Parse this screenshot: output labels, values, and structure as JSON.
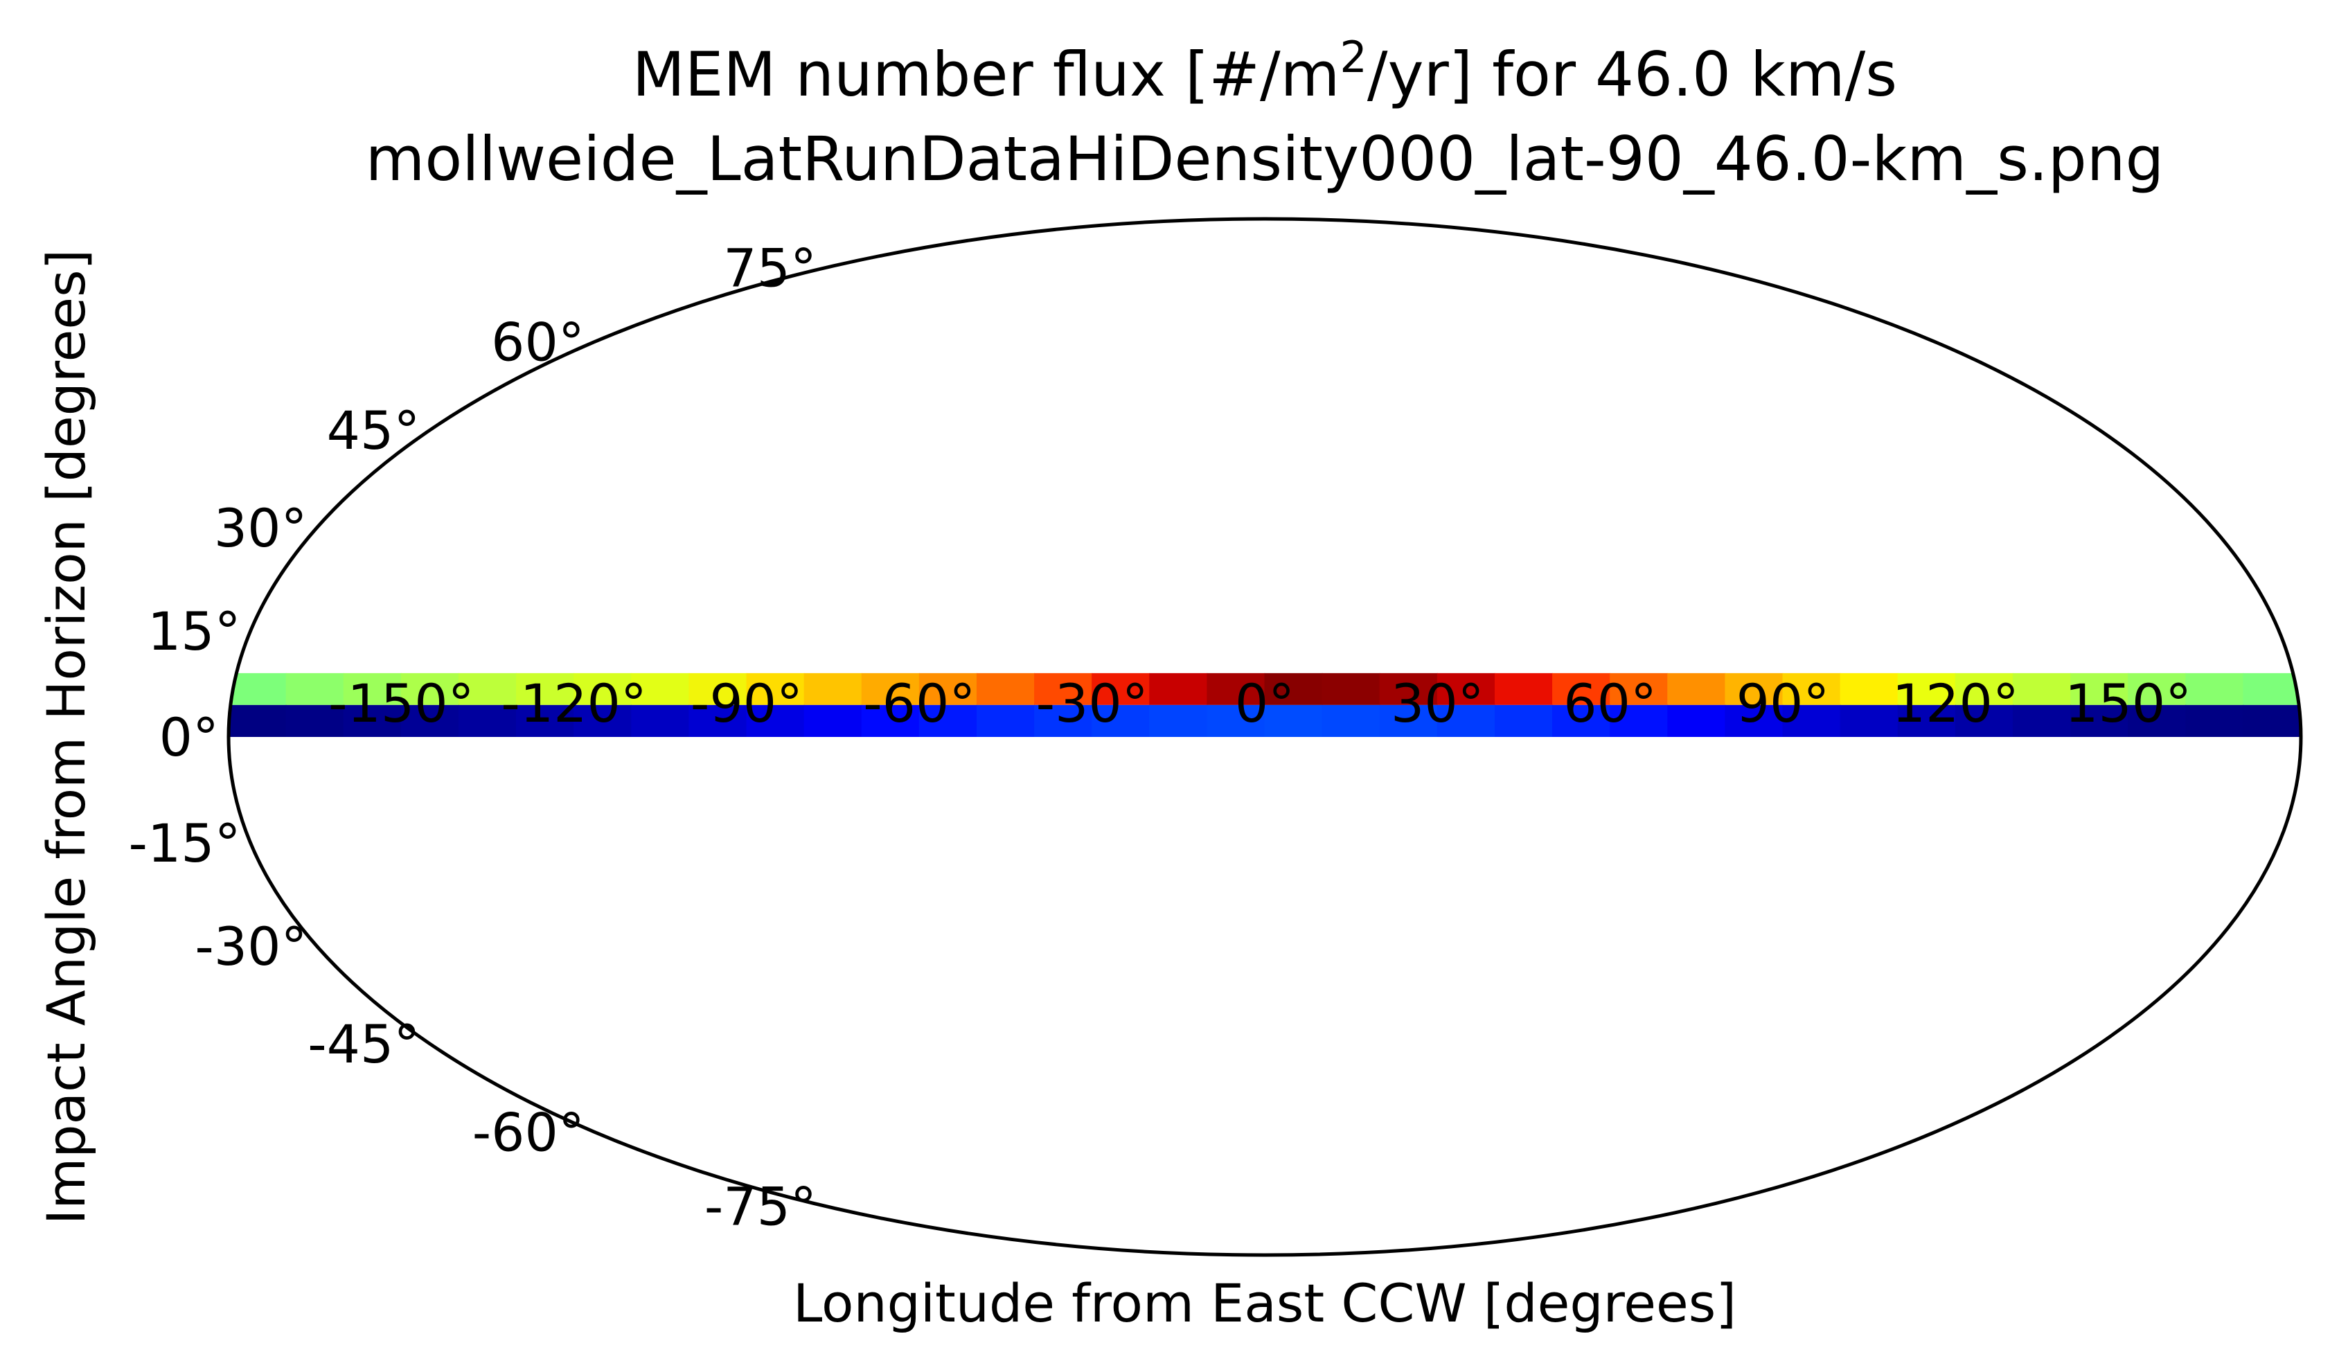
{
  "chart_data": {
    "type": "heatmap",
    "projection": "mollweide",
    "title": {
      "line1_prefix": "MEM number flux [#/m",
      "line1_superscript": "2",
      "line1_suffix": "/yr] for 46.0 km/s",
      "line2": "mollweide_LatRunDataHiDensity000_lat-90_46.0-km_s.png"
    },
    "xlabel": "Longitude from East CCW [degrees]",
    "ylabel": "Impact Angle from Horizon [degrees]",
    "xlim": [
      -180,
      180
    ],
    "ylim": [
      -90,
      90
    ],
    "x_ticks": [
      -150,
      -120,
      -90,
      -60,
      -30,
      0,
      30,
      60,
      90,
      120,
      150
    ],
    "x_tick_labels": [
      "-150°",
      "-120°",
      "-90°",
      "-60°",
      "-30°",
      "0°",
      "30°",
      "60°",
      "90°",
      "120°",
      "150°"
    ],
    "y_ticks": [
      75,
      60,
      45,
      30,
      15,
      0,
      -15,
      -30,
      -45,
      -60,
      -75
    ],
    "y_tick_labels": [
      "75°",
      "60°",
      "45°",
      "30°",
      "15°",
      "0°",
      "-15°",
      "-30°",
      "-45°",
      "-60°",
      "-75°"
    ],
    "grid": false,
    "colormap": "jet",
    "band_edges": [
      {
        "lon_min": -180,
        "lon_max": -175,
        "color": "#7dff7a"
      },
      {
        "lon_min": -175,
        "lon_max": -170,
        "color": "#80ff77"
      }
    ],
    "bands": [
      {
        "lat_min": 4.5,
        "lat_max": 9,
        "lon_edges": [
          -180,
          -170,
          -160,
          -150,
          -140,
          -130,
          -120,
          -110,
          -100,
          -90,
          -80,
          -70,
          -60,
          -50,
          -40,
          -30,
          -20,
          -10,
          0,
          10,
          20,
          30,
          40,
          50,
          60,
          70,
          80,
          90,
          100,
          110,
          120,
          130,
          140,
          150,
          160,
          170,
          180
        ],
        "colors": [
          "#7dff7a",
          "#8dff6a",
          "#9cff5a",
          "#adff4a",
          "#bdff3a",
          "#cbff2c",
          "#d7ff1f",
          "#e2ff16",
          "#f2f50a",
          "#ffdd00",
          "#ffc400",
          "#ffab00",
          "#ff8f00",
          "#ff6c00",
          "#ff4a00",
          "#f01a00",
          "#c80000",
          "#a60000",
          "#880000",
          "#8c0000",
          "#a00000",
          "#c40000",
          "#ea0e00",
          "#ff3c00",
          "#ff6600",
          "#ff9000",
          "#ffb400",
          "#ffd400",
          "#fff000",
          "#eaff0e",
          "#d4ff22",
          "#c0ff36",
          "#aaff4c",
          "#98ff5e",
          "#88ff6e",
          "#7dff7a"
        ]
      },
      {
        "lat_min": 0,
        "lat_max": 4.5,
        "lon_edges": [
          -180,
          -170,
          -160,
          -150,
          -140,
          -130,
          -120,
          -110,
          -100,
          -90,
          -80,
          -70,
          -60,
          -50,
          -40,
          -30,
          -20,
          -10,
          0,
          10,
          20,
          30,
          40,
          50,
          60,
          70,
          80,
          90,
          100,
          110,
          120,
          130,
          140,
          150,
          160,
          170,
          180
        ],
        "colors": [
          "#000082",
          "#000086",
          "#00008e",
          "#000096",
          "#00009e",
          "#0000a8",
          "#0000b4",
          "#0000c2",
          "#0000d2",
          "#0000e4",
          "#0000f4",
          "#0008ff",
          "#0018ff",
          "#0028ff",
          "#0034ff",
          "#003cff",
          "#0044ff",
          "#0048ff",
          "#004cff",
          "#0048ff",
          "#0044ff",
          "#003cff",
          "#0030ff",
          "#0020ff",
          "#0010ff",
          "#0000fa",
          "#0000e8",
          "#0000d6",
          "#0000c4",
          "#0000b4",
          "#0000a6",
          "#00009a",
          "#000090",
          "#000088",
          "#000084",
          "#000082"
        ]
      }
    ]
  }
}
